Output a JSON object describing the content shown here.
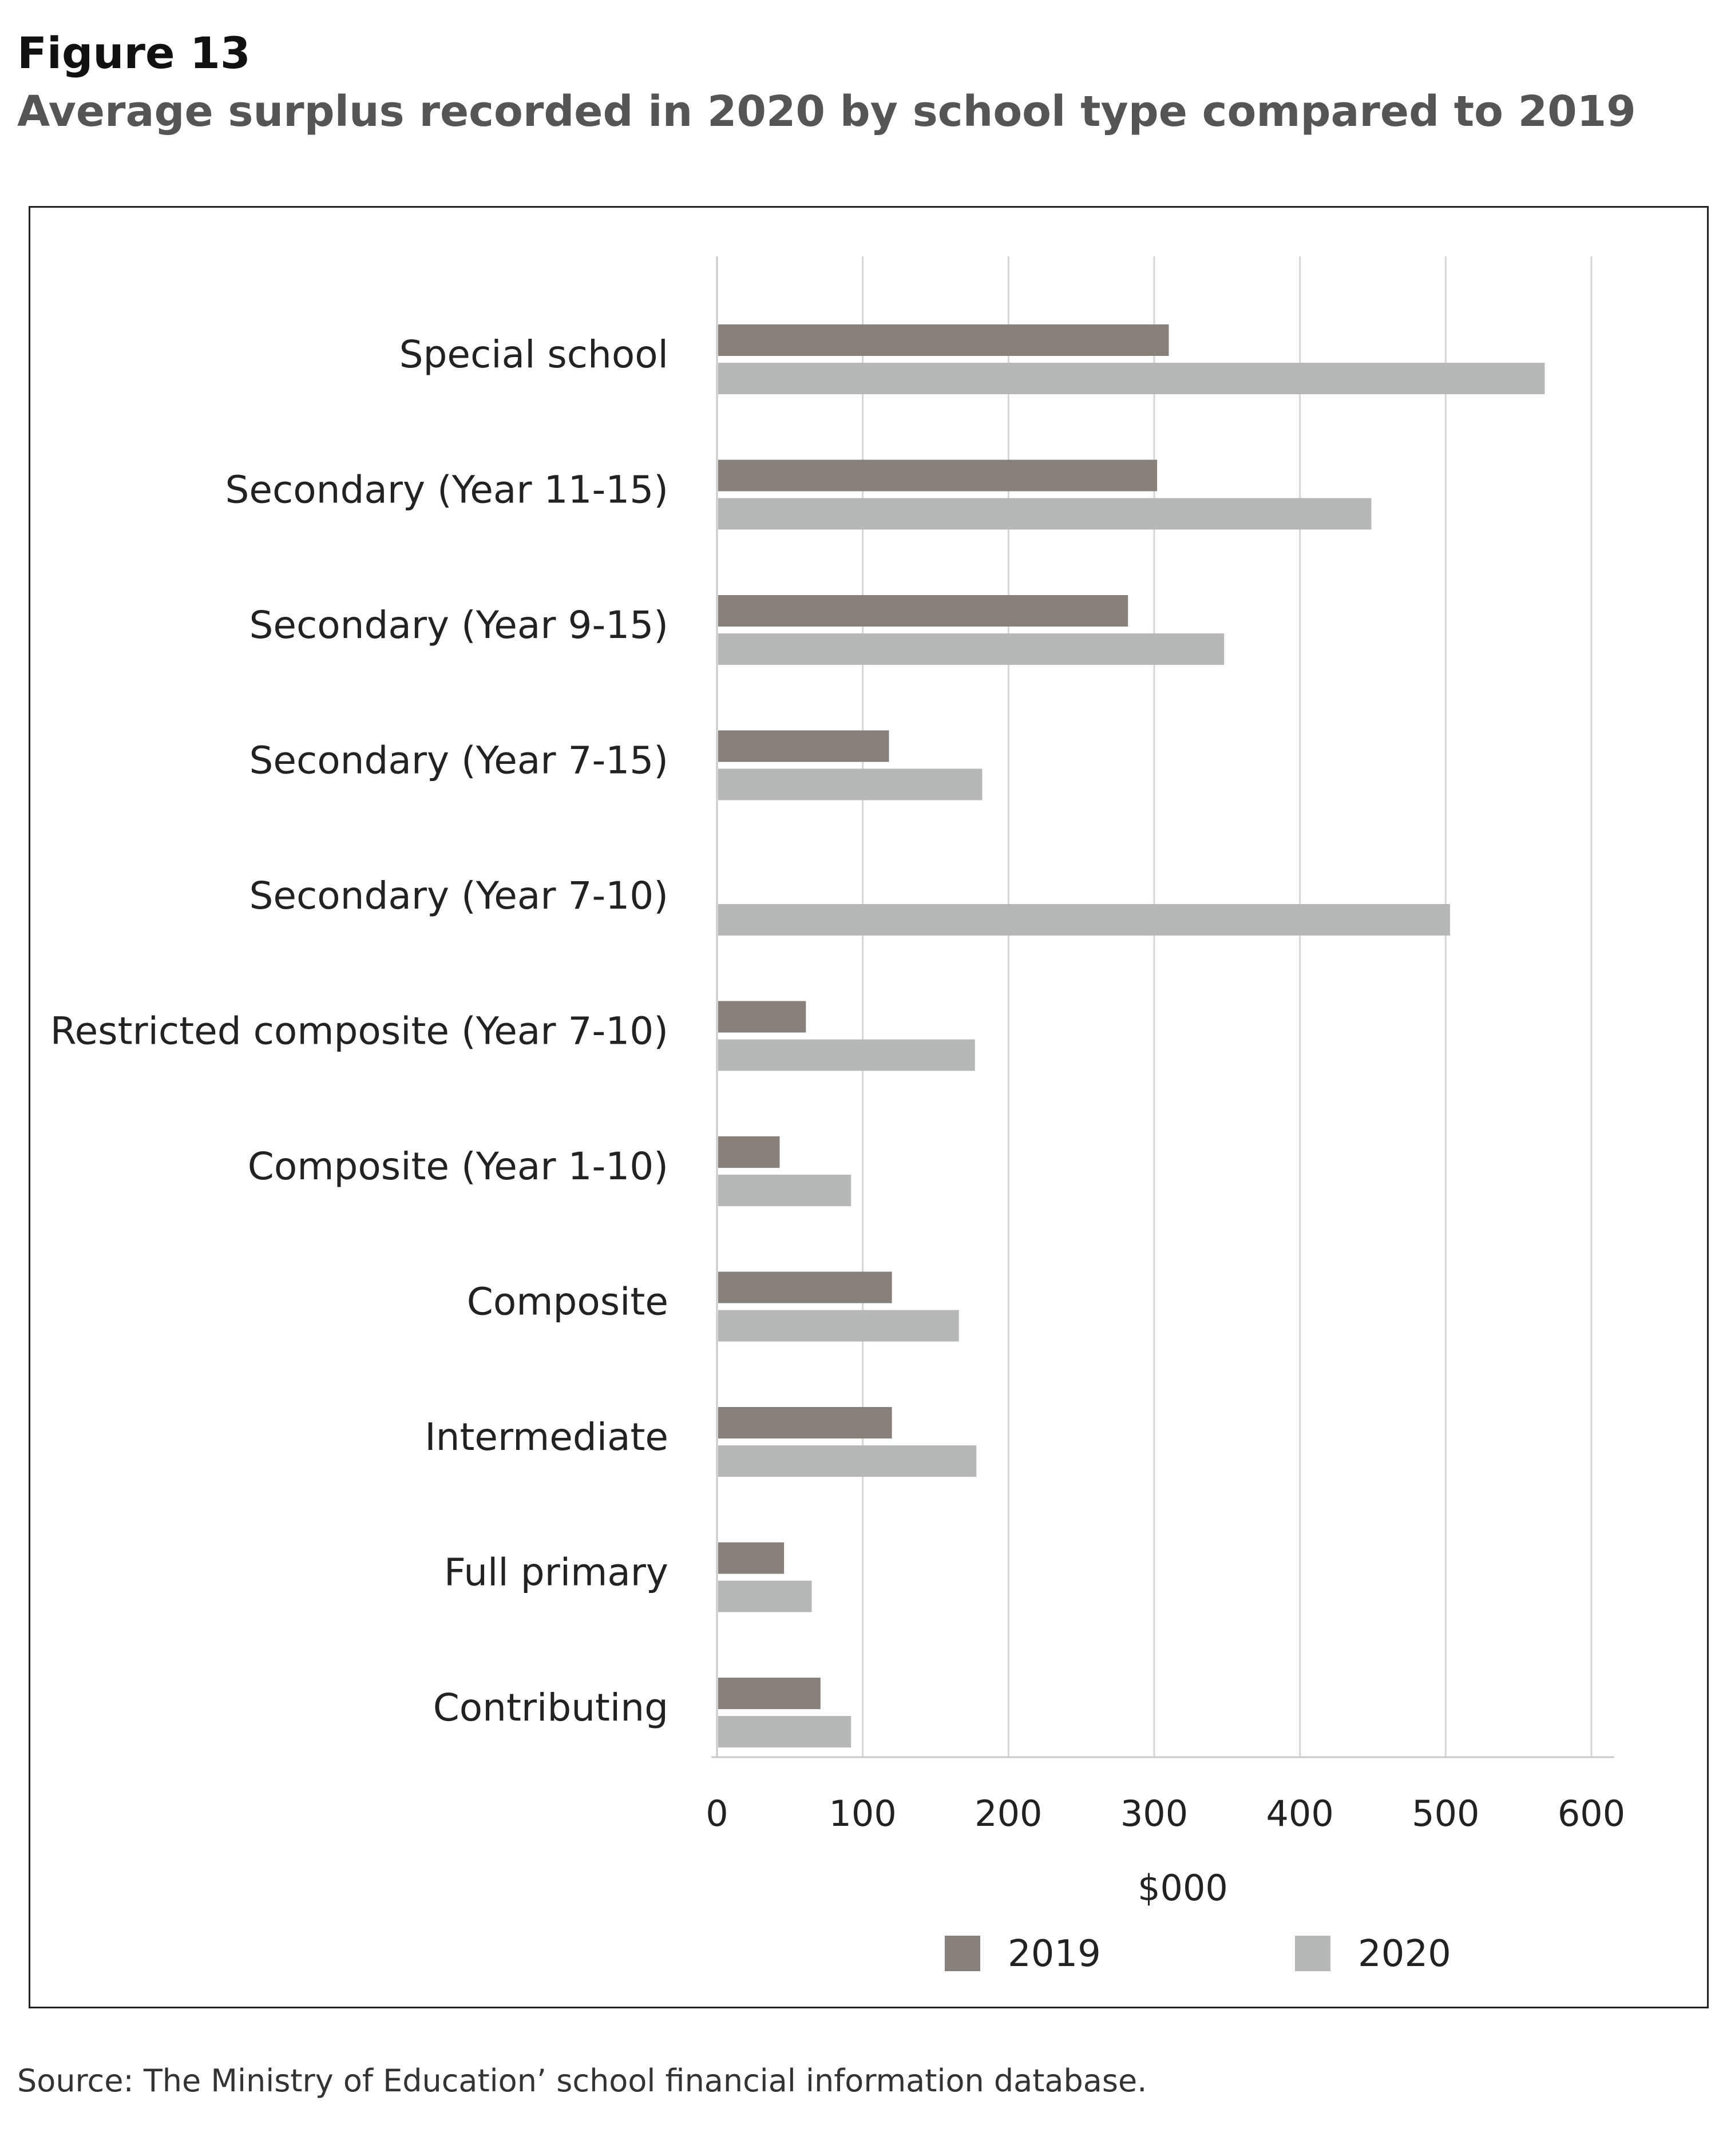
{
  "figure_number": "Figure 13",
  "figure_title": "Average surplus recorded in 2020 by school type compared to 2019",
  "source_note": "Source: The Ministry of Education’ school financial information database.",
  "colors": {
    "s2019": "#877f7a",
    "s2020": "#b5b8b6",
    "grid": "#d6d6d6",
    "axis": "#c8c8c8"
  },
  "chart_data": {
    "type": "bar",
    "orientation": "horizontal",
    "title": "Average surplus recorded in 2020 by school type compared to 2019",
    "xlabel": "$000",
    "ylabel": "",
    "xlim": [
      0,
      600
    ],
    "xticks": [
      0,
      100,
      200,
      300,
      400,
      500,
      600
    ],
    "grid": "vertical",
    "legend_position": "bottom-center",
    "categories": [
      "Special school",
      "Secondary  (Year 11-15)",
      "Secondary  (Year 9-15)",
      "Secondary  (Year 7-15)",
      "Secondary  (Year 7-10)",
      "Restricted composite (Year 7-10)",
      "Composite (Year 1-10)",
      "Composite",
      "Intermediate",
      "Full primary",
      "Contributing"
    ],
    "series": [
      {
        "name": "2019",
        "color": "#877f7a",
        "values": [
          310,
          302,
          282,
          118,
          0,
          61,
          43,
          120,
          120,
          46,
          71
        ]
      },
      {
        "name": "2020",
        "color": "#b5b8b6",
        "values": [
          568,
          449,
          348,
          182,
          503,
          177,
          92,
          166,
          178,
          65,
          92
        ]
      }
    ]
  }
}
